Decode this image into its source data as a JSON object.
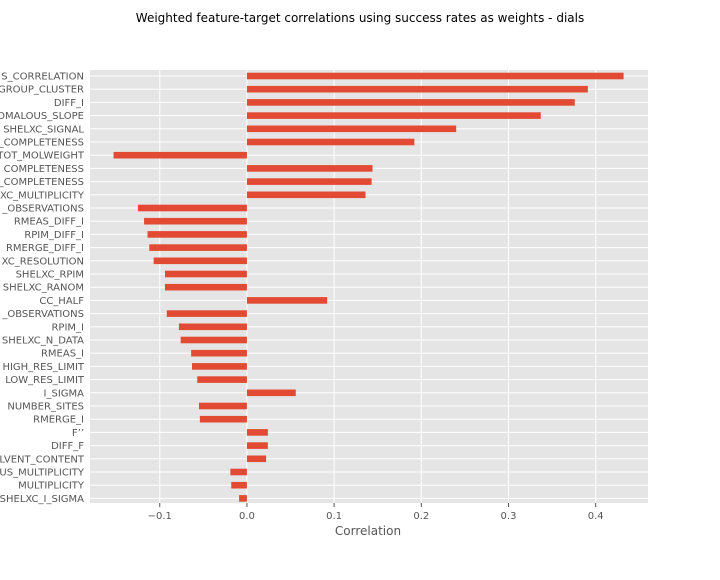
{
  "chart_data": {
    "type": "bar",
    "orientation": "horizontal",
    "title": "Weighted feature-target correlations using success rates as weights - dials",
    "xlabel": "Correlation",
    "ylabel": "",
    "xlim": [
      -0.18,
      0.46
    ],
    "xticks": [
      -0.1,
      0.0,
      0.1,
      0.2,
      0.3,
      0.4
    ],
    "xtick_labels": [
      "−0.1",
      "0.0",
      "0.1",
      "0.2",
      "0.3",
      "0.4"
    ],
    "grid": true,
    "bar_color": "#e24a33",
    "background_color": "#e5e5e5",
    "grid_color": "#ffffff",
    "categories": [
      "S_CORRELATION",
      "GROUP_CLUSTER",
      "DIFF_I",
      "OMALOUS_SLOPE",
      "SHELXC_SIGNAL",
      "_COMPLETENESS",
      "TOT_MOLWEIGHT",
      "COMPLETENESS",
      "_COMPLETENESS",
      "XC_MULTIPLICITY",
      "_OBSERVATIONS",
      "RMEAS_DIFF_I",
      "RPIM_DIFF_I",
      "RMERGE_DIFF_I",
      "XC_RESOLUTION",
      "SHELXC_RPIM",
      "SHELXC_RANOM",
      "CC_HALF",
      "_OBSERVATIONS",
      "RPIM_I",
      "SHELXC_N_DATA",
      "RMEAS_I",
      "HIGH_RES_LIMIT",
      "LOW_RES_LIMIT",
      "I_SIGMA",
      "NUMBER_SITES",
      "RMERGE_I",
      "F’’",
      "DIFF_F",
      "LVENT_CONTENT",
      "US_MULTIPLICITY",
      "MULTIPLICITY",
      "SHELXC_I_SIGMA"
    ],
    "values": [
      0.432,
      0.391,
      0.376,
      0.337,
      0.24,
      0.192,
      -0.153,
      0.144,
      0.143,
      0.136,
      -0.125,
      -0.118,
      -0.114,
      -0.112,
      -0.107,
      -0.094,
      -0.094,
      0.092,
      -0.092,
      -0.078,
      -0.076,
      -0.064,
      -0.063,
      -0.057,
      0.056,
      -0.055,
      -0.054,
      0.024,
      0.024,
      0.022,
      -0.019,
      -0.018,
      -0.009
    ]
  }
}
